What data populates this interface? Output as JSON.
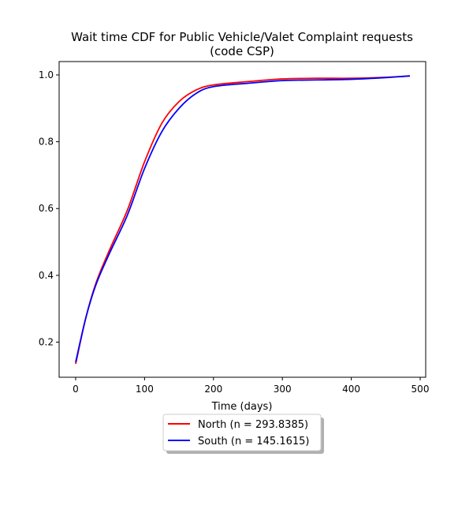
{
  "chart_data": {
    "type": "line",
    "title_line1": "Wait time CDF for Public Vehicle/Valet Complaint  requests",
    "title_line2": "(code CSP)",
    "xlabel": "Time (days)",
    "ylabel": "",
    "xlim": [
      -24,
      508
    ],
    "ylim": [
      0.095,
      1.04
    ],
    "xticks": [
      0,
      100,
      200,
      300,
      400,
      500
    ],
    "yticks": [
      0.2,
      0.4,
      0.6,
      0.8,
      1.0
    ],
    "xtick_labels": [
      "0",
      "100",
      "200",
      "300",
      "400",
      "500"
    ],
    "ytick_labels": [
      "0.2",
      "0.4",
      "0.6",
      "0.8",
      "1.0"
    ],
    "grid": false,
    "legend_position": "below plot, centered",
    "series": [
      {
        "name": "North (n = 293.8385)",
        "color": "#ff0000",
        "x": [
          0,
          15,
          30,
          50,
          75,
          100,
          125,
          150,
          175,
          200,
          250,
          300,
          350,
          400,
          450,
          485
        ],
        "y": [
          0.135,
          0.275,
          0.38,
          0.48,
          0.595,
          0.74,
          0.855,
          0.92,
          0.955,
          0.97,
          0.98,
          0.988,
          0.99,
          0.99,
          0.993,
          0.997
        ]
      },
      {
        "name": "South (n = 145.1615)",
        "color": "#0000ff",
        "x": [
          0,
          15,
          30,
          50,
          75,
          100,
          125,
          150,
          175,
          200,
          250,
          300,
          350,
          400,
          450,
          485
        ],
        "y": [
          0.14,
          0.275,
          0.375,
          0.47,
          0.58,
          0.72,
          0.83,
          0.9,
          0.945,
          0.965,
          0.975,
          0.983,
          0.985,
          0.987,
          0.992,
          0.997
        ]
      }
    ]
  }
}
